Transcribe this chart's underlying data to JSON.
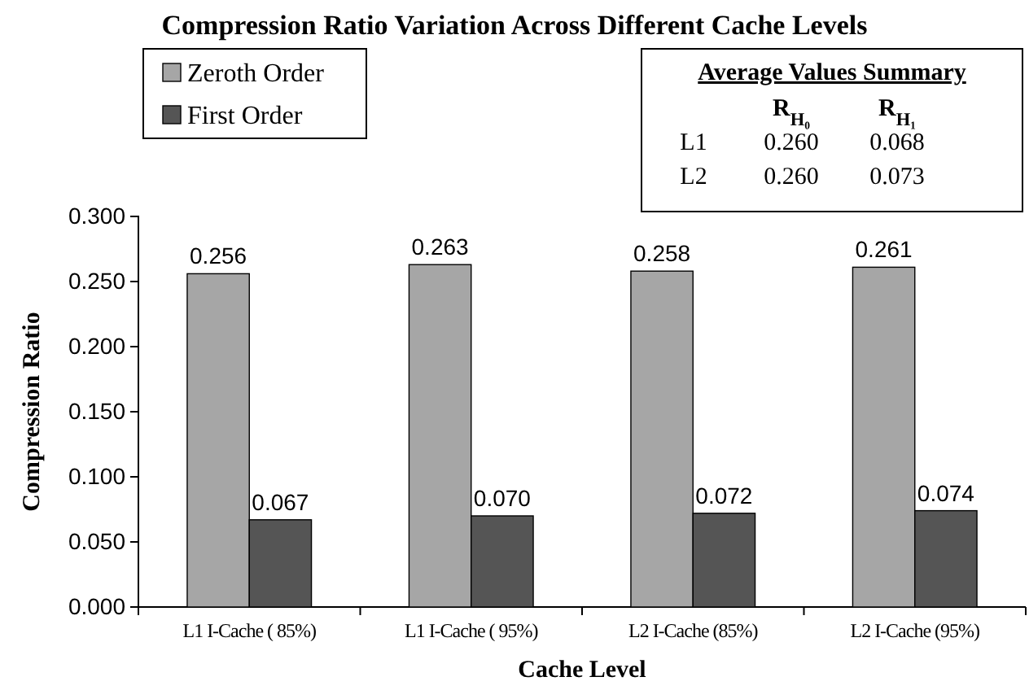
{
  "chart_data": {
    "type": "bar",
    "title": "Compression Ratio Variation Across Different Cache Levels",
    "xlabel": "Cache Level",
    "ylabel": "Compression Ratio",
    "categories": [
      "L1 I-Cache ( 85%)",
      "L1 I-Cache ( 95%)",
      "L2 I-Cache (85%)",
      "L2 I-Cache (95%)"
    ],
    "series": [
      {
        "name": "Zeroth Order",
        "color": "#a6a6a6",
        "values": [
          0.256,
          0.263,
          0.258,
          0.261
        ],
        "value_labels": [
          "0.256",
          "0.263",
          "0.258",
          "0.261"
        ]
      },
      {
        "name": "First Order",
        "color": "#555555",
        "values": [
          0.067,
          0.07,
          0.072,
          0.074
        ],
        "value_labels": [
          "0.067",
          "0.070",
          "0.072",
          "0.074"
        ]
      }
    ],
    "ylim": [
      0,
      0.3
    ],
    "yticks": [
      {
        "value": 0,
        "label": "0.000"
      },
      {
        "value": 0.05,
        "label": "0.050"
      },
      {
        "value": 0.1,
        "label": "0.100"
      },
      {
        "value": 0.15,
        "label": "0.150"
      },
      {
        "value": 0.2,
        "label": "0.200"
      },
      {
        "value": 0.25,
        "label": "0.250"
      },
      {
        "value": 0.3,
        "label": "0.300"
      }
    ],
    "legend": "top left",
    "grid": false,
    "annotations": [
      "Average Values Summary",
      "R$_{H₀}$",
      "R$_{H₁}$",
      "L1",
      "0.260",
      "0.068",
      "L2",
      "0.260",
      "0.073"
    ]
  }
}
